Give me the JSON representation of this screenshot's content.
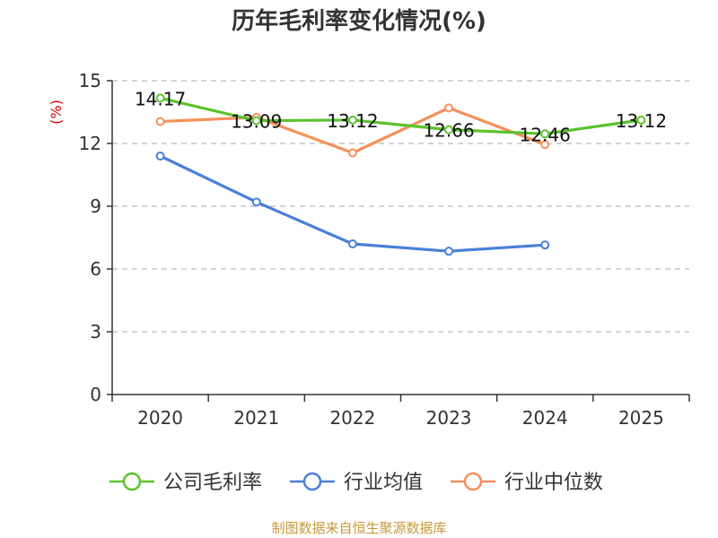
{
  "chart_data": {
    "type": "line",
    "title": "历年毛利率变化情况(%)",
    "ylabel": "(%)",
    "ylim": [
      0,
      15
    ],
    "yticks": [
      0,
      3,
      6,
      9,
      12,
      15
    ],
    "categories": [
      "2020",
      "2021",
      "2022",
      "2023",
      "2024",
      "2025"
    ],
    "grid": true,
    "legend_position": "bottom",
    "series": [
      {
        "name": "公司毛利率",
        "color": "#5bc22d",
        "values": [
          14.17,
          13.09,
          13.12,
          12.66,
          12.46,
          13.12
        ],
        "labels": [
          "14.17",
          "13.09",
          "13.12",
          "12.66",
          "12.46",
          "13.12"
        ]
      },
      {
        "name": "行业均值",
        "color": "#4a7fdb",
        "values": [
          11.4,
          9.2,
          7.2,
          6.85,
          7.15,
          null
        ]
      },
      {
        "name": "行业中位数",
        "color": "#f5905a",
        "values": [
          13.05,
          13.25,
          11.55,
          13.7,
          11.95,
          null
        ]
      }
    ],
    "ylabel_color": "#d40000",
    "source_color": "#c69a3c"
  },
  "footer": {
    "source": "制图数据来自恒生聚源数据库"
  }
}
